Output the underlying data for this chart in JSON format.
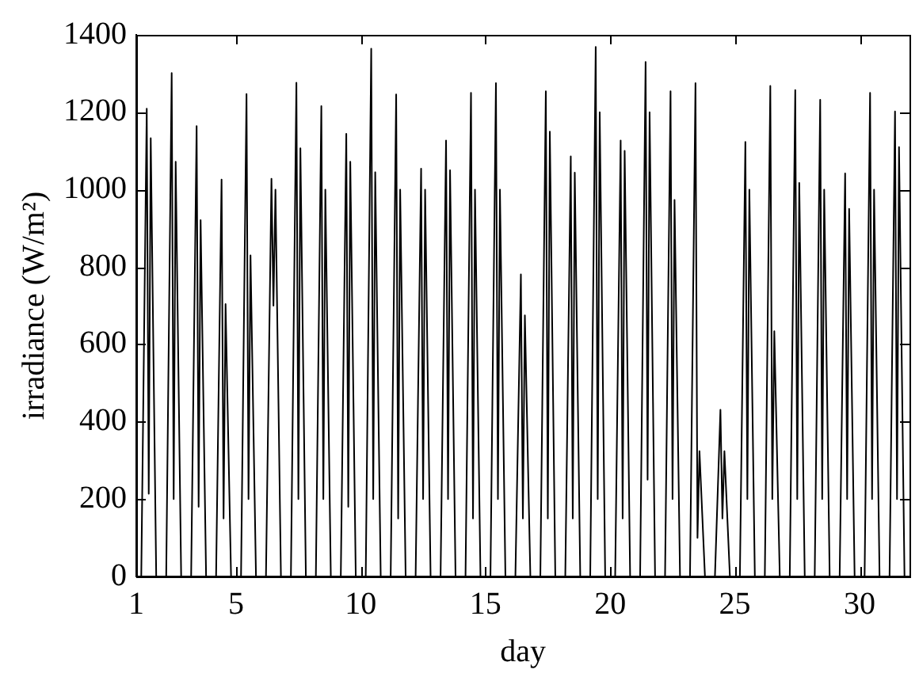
{
  "chart_data": {
    "type": "line",
    "xlabel": "day",
    "ylabel": "irradiance (W/m²)",
    "xlim": [
      1,
      32
    ],
    "xticks": [
      1,
      5,
      10,
      15,
      20,
      25,
      30
    ],
    "ylim": [
      0,
      1400
    ],
    "yticks": [
      0,
      200,
      400,
      600,
      800,
      1000,
      1200,
      1400
    ],
    "grid": false,
    "legend": false,
    "marker": "none",
    "line_style": "solid",
    "series": [
      {
        "color": "#000000",
        "x": [
          1.2,
          1.42,
          1.5,
          1.58,
          1.8,
          2.2,
          2.42,
          2.5,
          2.58,
          2.8,
          3.2,
          3.42,
          3.5,
          3.58,
          3.8,
          4.2,
          4.42,
          4.5,
          4.58,
          4.8,
          5.2,
          5.42,
          5.5,
          5.58,
          5.8,
          6.2,
          6.42,
          6.5,
          6.58,
          6.8,
          7.2,
          7.42,
          7.5,
          7.58,
          7.8,
          8.2,
          8.42,
          8.5,
          8.58,
          8.8,
          9.2,
          9.42,
          9.5,
          9.58,
          9.8,
          10.2,
          10.42,
          10.5,
          10.58,
          10.8,
          11.2,
          11.42,
          11.5,
          11.58,
          11.8,
          12.2,
          12.42,
          12.5,
          12.58,
          12.8,
          13.2,
          13.42,
          13.5,
          13.58,
          13.8,
          14.2,
          14.42,
          14.5,
          14.58,
          14.8,
          15.2,
          15.42,
          15.5,
          15.58,
          15.8,
          16.2,
          16.42,
          16.5,
          16.58,
          16.8,
          17.2,
          17.42,
          17.5,
          17.58,
          17.8,
          18.2,
          18.42,
          18.5,
          18.58,
          18.8,
          19.2,
          19.42,
          19.5,
          19.58,
          19.8,
          20.2,
          20.42,
          20.5,
          20.58,
          20.8,
          21.2,
          21.42,
          21.5,
          21.58,
          21.8,
          22.2,
          22.42,
          22.5,
          22.58,
          22.8,
          23.2,
          23.42,
          23.5,
          23.58,
          23.8,
          24.2,
          24.42,
          24.5,
          24.58,
          24.8,
          25.2,
          25.42,
          25.5,
          25.58,
          25.8,
          26.2,
          26.42,
          26.5,
          26.58,
          26.8,
          27.2,
          27.42,
          27.5,
          27.58,
          27.8,
          28.2,
          28.42,
          28.5,
          28.58,
          28.8,
          29.2,
          29.42,
          29.5,
          29.58,
          29.8,
          30.2,
          30.42,
          30.5,
          30.58,
          30.8,
          31.2,
          31.42,
          31.5,
          31.58,
          31.8
        ],
        "values": [
          0,
          1209,
          214,
          1133,
          0,
          0,
          1301,
          200,
          1072,
          0,
          0,
          1164,
          180,
          921,
          0,
          0,
          1026,
          150,
          704,
          0,
          0,
          1247,
          200,
          830,
          0,
          0,
          1028,
          700,
          1000,
          0,
          0,
          1276,
          200,
          1107,
          0,
          0,
          1216,
          200,
          1000,
          0,
          0,
          1144,
          180,
          1072,
          0,
          0,
          1364,
          200,
          1045,
          0,
          0,
          1246,
          150,
          1000,
          0,
          0,
          1054,
          200,
          1000,
          0,
          0,
          1127,
          200,
          1050,
          0,
          0,
          1250,
          150,
          1000,
          0,
          0,
          1275,
          200,
          1000,
          0,
          0,
          781,
          150,
          675,
          0,
          0,
          1254,
          150,
          1150,
          0,
          0,
          1086,
          150,
          1044,
          0,
          0,
          1369,
          200,
          1200,
          0,
          0,
          1127,
          150,
          1100,
          0,
          0,
          1330,
          250,
          1200,
          0,
          0,
          1254,
          200,
          973,
          0,
          0,
          1275,
          100,
          324,
          0,
          0,
          431,
          150,
          324,
          0,
          0,
          1123,
          200,
          1000,
          0,
          0,
          1268,
          200,
          634,
          0,
          0,
          1257,
          200,
          1017,
          0,
          0,
          1232,
          200,
          1000,
          0,
          0,
          1042,
          200,
          950,
          0,
          0,
          1250,
          200,
          1000,
          0,
          0,
          1202,
          200,
          1110,
          0
        ]
      }
    ]
  }
}
